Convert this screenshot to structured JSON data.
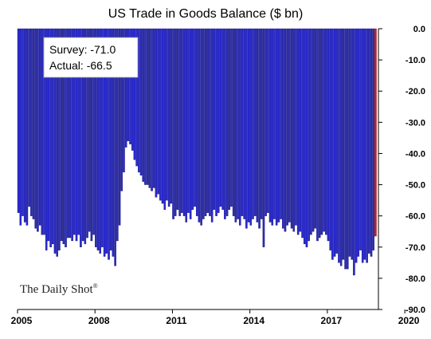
{
  "chart_data": {
    "type": "bar",
    "title": "US Trade in Goods Balance ($ bn)",
    "xlabel": "",
    "ylabel": "",
    "ylim": [
      -90,
      0
    ],
    "yticks": [
      0,
      -10,
      -20,
      -30,
      -40,
      -50,
      -60,
      -70,
      -80,
      -90
    ],
    "ytick_labels": [
      "0.0",
      "-10.0",
      "-20.0",
      "-30.0",
      "-40.0",
      "-50.0",
      "-60.0",
      "-70.0",
      "-80.0",
      "-90.0"
    ],
    "xticks": [
      "2005",
      "2008",
      "2011",
      "2014",
      "2017",
      "2020"
    ],
    "y_axis_position": "right",
    "grid": false,
    "bar_color": "#2a2ad0",
    "highlight_color": "#cc1a1a",
    "series": [
      {
        "start": "2005-01",
        "frequency": "monthly",
        "values": [
          -59,
          -63,
          -60,
          -62,
          -63,
          -57,
          -60,
          -61,
          -64,
          -65,
          -63,
          -66,
          -66,
          -71,
          -68,
          -70,
          -69,
          -72,
          -73,
          -71,
          -68,
          -69,
          -70,
          -67,
          -67,
          -68,
          -66,
          -68,
          -66,
          -70,
          -68,
          -69,
          -67,
          -65,
          -68,
          -66,
          -70,
          -71,
          -72,
          -70,
          -73,
          -72,
          -74,
          -71,
          -73,
          -76,
          -68,
          -63,
          -52,
          -46,
          -38,
          -36,
          -37,
          -39,
          -42,
          -44,
          -46,
          -47,
          -49,
          -50,
          -50,
          -51,
          -52,
          -51,
          -54,
          -53,
          -55,
          -56,
          -58,
          -55,
          -57,
          -56,
          -61,
          -60,
          -58,
          -60,
          -59,
          -60,
          -62,
          -59,
          -61,
          -58,
          -57,
          -60,
          -62,
          -63,
          -61,
          -60,
          -59,
          -60,
          -62,
          -58,
          -60,
          -59,
          -57,
          -58,
          -61,
          -60,
          -58,
          -57,
          -60,
          -62,
          -61,
          -63,
          -60,
          -61,
          -64,
          -62,
          -63,
          -61,
          -60,
          -62,
          -64,
          -61,
          -70,
          -60,
          -59,
          -62,
          -63,
          -61,
          -63,
          -62,
          -61,
          -64,
          -65,
          -63,
          -62,
          -64,
          -65,
          -63,
          -66,
          -65,
          -67,
          -69,
          -70,
          -68,
          -66,
          -65,
          -64,
          -68,
          -67,
          -66,
          -65,
          -66,
          -68,
          -71,
          -74,
          -73,
          -72,
          -75,
          -76,
          -74,
          -77,
          -77,
          -73,
          -74,
          -79,
          -75,
          -73,
          -71,
          -75,
          -74,
          -75,
          -72,
          -73,
          -71,
          -66.5
        ]
      }
    ],
    "highlight_last": true,
    "annotations": {
      "survey": "Survey: -71.0",
      "actual": "Actual:  -66.5"
    },
    "watermark": "The Daily Shot",
    "watermark_mark": "®"
  }
}
